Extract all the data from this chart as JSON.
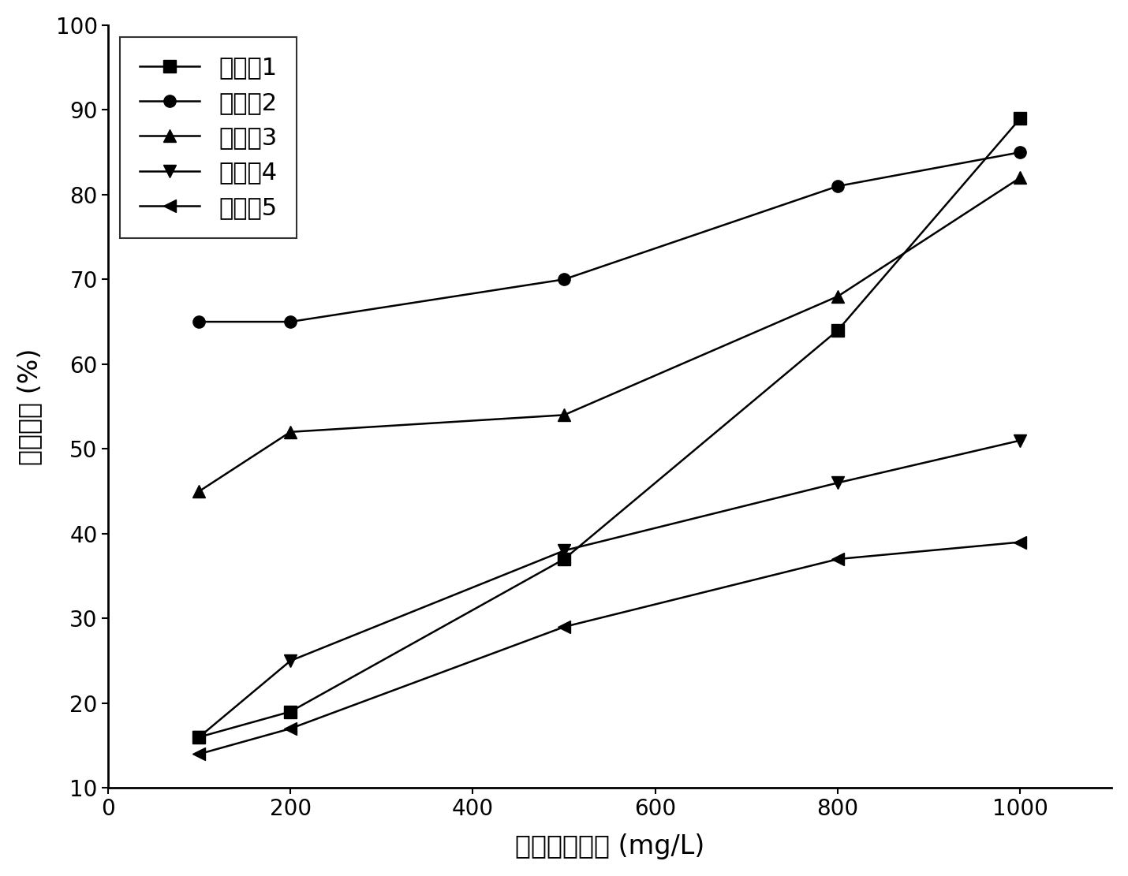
{
  "series": [
    {
      "label": "实验组1",
      "x": [
        100,
        200,
        500,
        800,
        1000
      ],
      "y": [
        16,
        19,
        37,
        64,
        89
      ],
      "marker": "s",
      "color": "#000000",
      "linestyle": "-"
    },
    {
      "label": "实验组2",
      "x": [
        100,
        200,
        500,
        800,
        1000
      ],
      "y": [
        65,
        65,
        70,
        81,
        85
      ],
      "marker": "o",
      "color": "#000000",
      "linestyle": "-"
    },
    {
      "label": "实验组3",
      "x": [
        100,
        200,
        500,
        800,
        1000
      ],
      "y": [
        45,
        52,
        54,
        68,
        82
      ],
      "marker": "^",
      "color": "#000000",
      "linestyle": "-"
    },
    {
      "label": "实验组4",
      "x": [
        100,
        200,
        500,
        800,
        1000
      ],
      "y": [
        16,
        25,
        38,
        46,
        51
      ],
      "marker": "v",
      "color": "#000000",
      "linestyle": "-"
    },
    {
      "label": "实验组5",
      "x": [
        100,
        200,
        500,
        800,
        1000
      ],
      "y": [
        14,
        17,
        29,
        37,
        39
      ],
      "marker": "<",
      "color": "#000000",
      "linestyle": "-"
    }
  ],
  "xlabel": "絮凝剂投加量 (mg/L)",
  "ylabel": "脱色效率 (%)",
  "xlim": [
    0,
    1100
  ],
  "ylim": [
    10,
    100
  ],
  "xticks": [
    0,
    200,
    400,
    600,
    800,
    1000
  ],
  "yticks": [
    10,
    20,
    30,
    40,
    50,
    60,
    70,
    80,
    90,
    100
  ],
  "marker_size": 11,
  "linewidth": 1.8,
  "background_color": "#ffffff",
  "legend_fontsize": 22,
  "axis_label_fontsize": 24,
  "tick_fontsize": 20
}
